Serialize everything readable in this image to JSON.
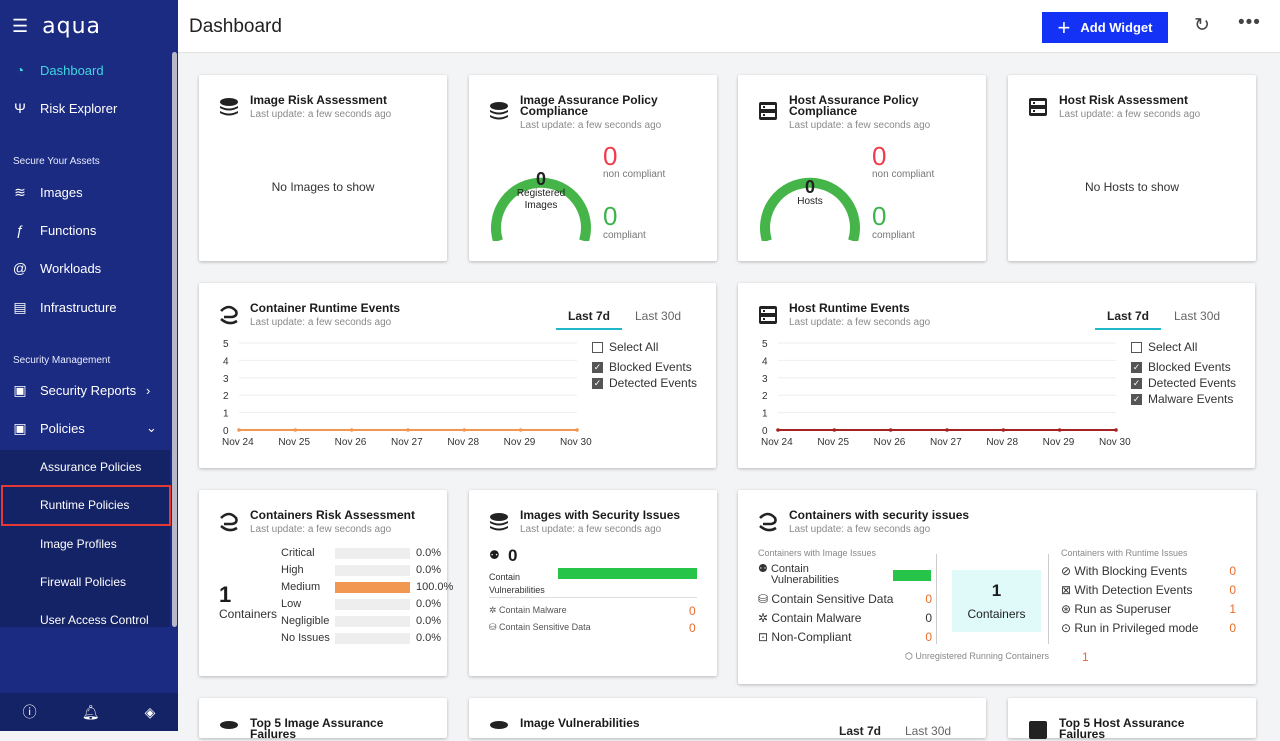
{
  "app": {
    "logo": "aqua"
  },
  "sidebar": {
    "dashboard": "Dashboard",
    "risk_explorer": "Risk Explorer",
    "section_assets": "Secure Your Assets",
    "images": "Images",
    "functions": "Functions",
    "workloads": "Workloads",
    "infrastructure": "Infrastructure",
    "section_security": "Security Management",
    "security_reports": "Security Reports",
    "policies": "Policies",
    "sub": {
      "assurance": "Assurance Policies",
      "runtime": "Runtime Policies",
      "image_profiles": "Image Profiles",
      "firewall": "Firewall Policies",
      "user_access": "User Access Control"
    }
  },
  "header": {
    "title": "Dashboard",
    "add_widget": "Add Widget"
  },
  "common": {
    "last_update": "Last update: a few seconds ago",
    "tab_7d": "Last 7d",
    "tab_30d": "Last 30d"
  },
  "image_risk": {
    "title": "Image Risk Assessment",
    "empty": "No Images to show"
  },
  "image_policy": {
    "title": "Image Assurance Policy Compliance",
    "center_value": "0",
    "center_label_1": "Registered",
    "center_label_2": "Images",
    "non_compliant": "0",
    "non_compliant_label": "non compliant",
    "compliant": "0",
    "compliant_label": "compliant"
  },
  "host_policy": {
    "title": "Host Assurance Policy Compliance",
    "center_value": "0",
    "center_label": "Hosts",
    "non_compliant": "0",
    "non_compliant_label": "non compliant",
    "compliant": "0",
    "compliant_label": "compliant"
  },
  "host_risk": {
    "title": "Host Risk Assessment",
    "empty": "No Hosts to show"
  },
  "container_runtime": {
    "title": "Container Runtime Events",
    "filters": [
      "Select All",
      "Blocked Events",
      "Detected Events"
    ]
  },
  "host_runtime": {
    "title": "Host Runtime Events",
    "filters": [
      "Select All",
      "Blocked Events",
      "Detected Events",
      "Malware Events"
    ]
  },
  "chart_data": [
    {
      "type": "line",
      "title": "Container Runtime Events",
      "categories": [
        "Nov 24",
        "Nov 25",
        "Nov 26",
        "Nov 27",
        "Nov 28",
        "Nov 29",
        "Nov 30"
      ],
      "ylim": [
        0,
        5
      ],
      "yticks": [
        "0",
        "1",
        "2",
        "3",
        "4",
        "5"
      ],
      "series": [
        {
          "name": "Detected Events",
          "color": "#f29752",
          "values": [
            0,
            0,
            0,
            0,
            0,
            0,
            0
          ]
        }
      ]
    },
    {
      "type": "line",
      "title": "Host Runtime Events",
      "categories": [
        "Nov 24",
        "Nov 25",
        "Nov 26",
        "Nov 27",
        "Nov 28",
        "Nov 29",
        "Nov 30"
      ],
      "ylim": [
        0,
        5
      ],
      "yticks": [
        "0",
        "1",
        "2",
        "3",
        "4",
        "5"
      ],
      "series": [
        {
          "name": "Blocked Events",
          "color": "#a52222",
          "values": [
            0,
            0,
            0,
            0,
            0,
            0,
            0
          ]
        }
      ]
    }
  ],
  "containers_risk": {
    "title": "Containers Risk Assessment",
    "count": "1",
    "count_label": "Containers",
    "rows": [
      {
        "label": "Critical",
        "value": "0.0%",
        "pct": 0
      },
      {
        "label": "High",
        "value": "0.0%",
        "pct": 0
      },
      {
        "label": "Medium",
        "value": "100.0%",
        "pct": 100
      },
      {
        "label": "Low",
        "value": "0.0%",
        "pct": 0
      },
      {
        "label": "Negligible",
        "value": "0.0%",
        "pct": 0
      },
      {
        "label": "No Issues",
        "value": "0.0%",
        "pct": 0
      }
    ]
  },
  "images_sec": {
    "title": "Images with Security Issues",
    "count": "0",
    "vuln_label_1": "Contain",
    "vuln_label_2": "Vulnerabilities",
    "malware": "Contain Malware",
    "malware_val": "0",
    "sensitive": "Contain Sensitive Data",
    "sensitive_val": "0"
  },
  "containers_sec": {
    "title": "Containers with security issues",
    "image_issues": "Containers with Image Issues",
    "runtime_issues": "Containers with Runtime Issues",
    "left": [
      {
        "label": "Contain Vulnerabilities",
        "value": ""
      },
      {
        "label": "Contain Sensitive Data",
        "value": "0"
      },
      {
        "label": "Contain Malware",
        "value": "0"
      },
      {
        "label": "Non-Compliant",
        "value": "0"
      }
    ],
    "center_value": "1",
    "center_label": "Containers",
    "right": [
      {
        "label": "With Blocking Events",
        "value": "0"
      },
      {
        "label": "With Detection Events",
        "value": "0"
      },
      {
        "label": "Run as Superuser",
        "value": "1"
      },
      {
        "label": "Run in Privileged mode",
        "value": "0"
      }
    ],
    "unregistered": "Unregistered Running Containers",
    "unregistered_val": "1"
  },
  "bottom": {
    "top5_image": "Top 5 Image Assurance Failures",
    "image_vuln": "Image Vulnerabilities",
    "top5_host": "Top 5 Host Assurance Failures",
    "tab_7d": "Last 7d",
    "tab_30d": "Last 30d"
  }
}
